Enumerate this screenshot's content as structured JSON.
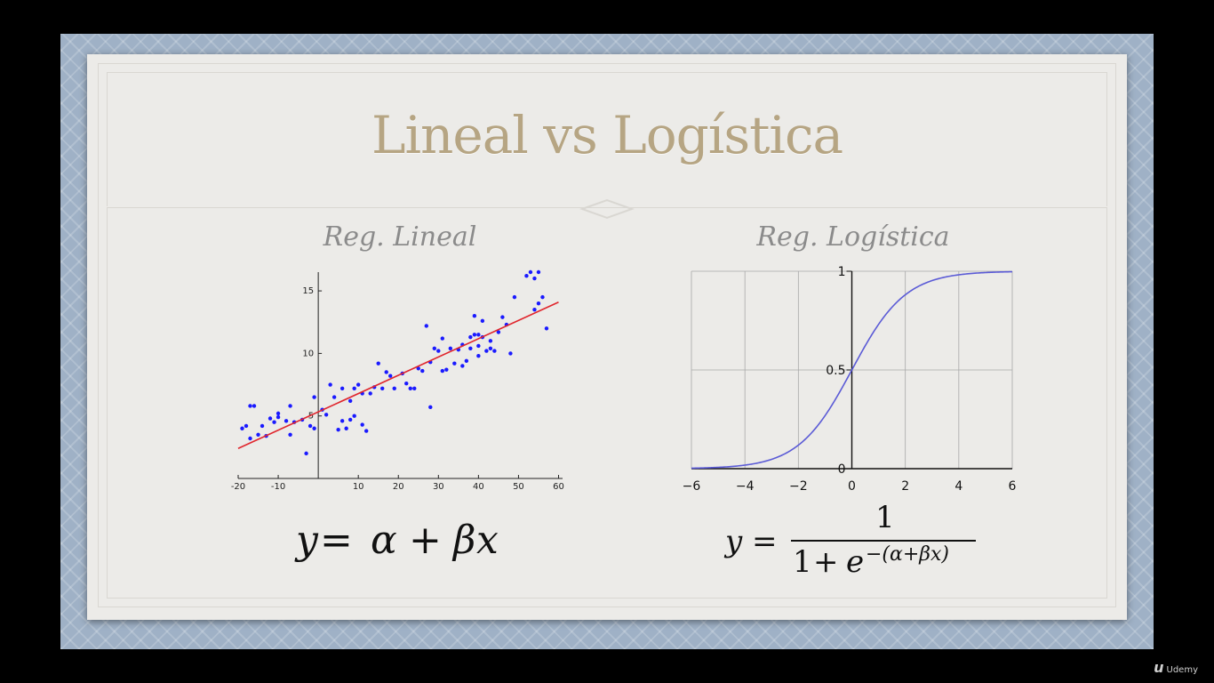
{
  "slide": {
    "title": "Lineal vs Logística"
  },
  "charts": {
    "linear_subtitle": "Reg. Lineal",
    "logistic_subtitle": "Reg. Logística"
  },
  "chart_data": [
    {
      "type": "scatter",
      "title": "Reg. Lineal",
      "xlim": [
        -20,
        61
      ],
      "ylim": [
        0,
        16.5
      ],
      "x_ticks": [
        -20,
        -10,
        10,
        20,
        30,
        40,
        50,
        60
      ],
      "x_tick_labels": [
        "-20",
        "-10",
        "10",
        "20",
        "30",
        "40",
        "50",
        "60"
      ],
      "y_ticks": [
        5,
        10,
        15
      ],
      "y_tick_labels": [
        "5",
        "10",
        "15"
      ],
      "grid": false,
      "series": [
        {
          "points": [
            [
              -19,
              4
            ],
            [
              -18,
              4.2
            ],
            [
              -17,
              5.8
            ],
            [
              -16,
              5.8
            ],
            [
              -17,
              3.2
            ],
            [
              -15,
              3.5
            ],
            [
              -14,
              4.2
            ],
            [
              -13,
              3.4
            ],
            [
              -12,
              4.8
            ],
            [
              -11,
              4.5
            ],
            [
              -10,
              5.2
            ],
            [
              -8,
              4.6
            ],
            [
              -7,
              5.8
            ],
            [
              -7,
              3.5
            ],
            [
              -6,
              4.5
            ],
            [
              -4,
              4.7
            ],
            [
              -3,
              2
            ],
            [
              -2,
              4.2
            ],
            [
              -1,
              6.5
            ],
            [
              -1,
              4
            ],
            [
              1,
              5.5
            ],
            [
              2,
              5.1
            ],
            [
              3,
              7.5
            ],
            [
              4,
              6.5
            ],
            [
              5,
              3.9
            ],
            [
              6,
              7.2
            ],
            [
              6,
              4.6
            ],
            [
              7,
              4
            ],
            [
              8,
              6.2
            ],
            [
              8,
              4.7
            ],
            [
              9,
              5
            ],
            [
              9,
              7.2
            ],
            [
              10,
              7.5
            ],
            [
              11,
              6.8
            ],
            [
              11,
              4.3
            ],
            [
              12,
              3.8
            ],
            [
              13,
              6.8
            ],
            [
              14,
              7.3
            ],
            [
              15,
              9.2
            ],
            [
              16,
              7.2
            ],
            [
              17,
              8.5
            ],
            [
              19,
              7.2
            ],
            [
              21,
              8.4
            ],
            [
              22,
              7.6
            ],
            [
              23,
              7.2
            ],
            [
              24,
              7.2
            ],
            [
              25,
              8.8
            ],
            [
              27,
              12.2
            ],
            [
              28,
              5.7
            ],
            [
              28,
              9.3
            ],
            [
              29,
              10.4
            ],
            [
              30,
              10.2
            ],
            [
              31,
              8.6
            ],
            [
              31,
              11.2
            ],
            [
              32,
              8.7
            ],
            [
              33,
              10.4
            ],
            [
              34,
              9.2
            ],
            [
              35,
              10.3
            ],
            [
              36,
              10.7
            ],
            [
              36,
              9
            ],
            [
              37,
              9.4
            ],
            [
              38,
              10.4
            ],
            [
              38,
              11.3
            ],
            [
              39,
              13
            ],
            [
              39,
              11.5
            ],
            [
              40,
              10.6
            ],
            [
              40,
              9.8
            ],
            [
              40,
              11.5
            ],
            [
              41,
              12.6
            ],
            [
              41,
              11.3
            ],
            [
              42,
              10.2
            ],
            [
              43,
              11
            ],
            [
              43,
              10.4
            ],
            [
              44,
              10.2
            ],
            [
              45,
              11.7
            ],
            [
              46,
              12.9
            ],
            [
              48,
              10
            ],
            [
              49,
              14.5
            ],
            [
              52,
              16.2
            ],
            [
              53,
              16.5
            ],
            [
              54,
              16
            ],
            [
              54,
              13.5
            ],
            [
              55,
              16.5
            ],
            [
              56,
              14.5
            ],
            [
              57,
              12
            ],
            [
              55,
              14
            ],
            [
              -10,
              4.9
            ],
            [
              18,
              8.2
            ],
            [
              26,
              8.6
            ],
            [
              47,
              12.3
            ]
          ]
        }
      ],
      "regression_line": {
        "x": [
          -20,
          60
        ],
        "y": [
          2.4,
          14.1
        ]
      },
      "colors": {
        "points": "#1a1aff",
        "line": "#e0262d"
      }
    },
    {
      "type": "line",
      "title": "Reg. Logística",
      "xlim": [
        -6,
        6
      ],
      "ylim": [
        0,
        1
      ],
      "x_ticks": [
        -6,
        -4,
        -2,
        0,
        2,
        4,
        6
      ],
      "x_tick_labels": [
        "−6",
        "−4",
        "−2",
        "0",
        "2",
        "4",
        "6"
      ],
      "y_ticks": [
        0,
        0.5,
        1
      ],
      "y_tick_labels": [
        "0",
        "0.5",
        "1"
      ],
      "grid": true,
      "series": [
        {
          "function": "sigmoid",
          "x": [
            -6,
            -5,
            -4,
            -3,
            -2,
            -1,
            0,
            1,
            2,
            3,
            4,
            5,
            6
          ],
          "y": [
            0.0025,
            0.0067,
            0.018,
            0.047,
            0.119,
            0.269,
            0.5,
            0.731,
            0.881,
            0.953,
            0.982,
            0.9933,
            0.9975
          ]
        }
      ],
      "colors": {
        "line": "#5b5bd6",
        "grid": "#a8a8a8"
      }
    }
  ],
  "equations": {
    "linear": {
      "y": "y",
      "eq": "=",
      "alpha": "α",
      "plus": "+",
      "beta": "β",
      "x": "x"
    },
    "logistic": {
      "y": "y",
      "eq": "=",
      "numerator": "1",
      "den_one": "1",
      "den_plus": "+",
      "e": "e",
      "exponent": "−(α+βx)"
    }
  },
  "branding": {
    "logo_text": "Udemy",
    "logo_mark": "u"
  }
}
